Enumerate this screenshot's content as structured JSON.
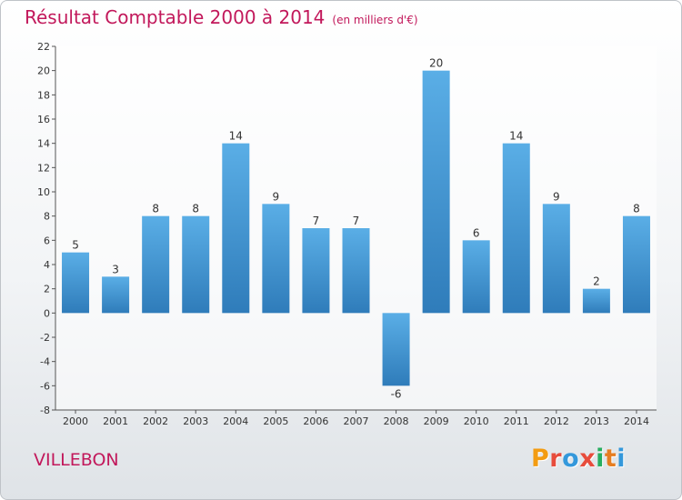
{
  "title": "Résultat Comptable 2000 à 2014",
  "unit": "(en milliers d'€)",
  "commune": "VILLEBON",
  "logo": {
    "letters": [
      "P",
      "r",
      "o",
      "x",
      "i",
      "t",
      "i"
    ],
    "colors": [
      "#f39c12",
      "#e74c3c",
      "#3498db",
      "#e74c3c",
      "#27ae60",
      "#e67e22",
      "#3498db"
    ]
  },
  "colors": {
    "bar_light": "#5aaee6",
    "bar_dark": "#2f7cba",
    "title": "#c2185b"
  },
  "chart_data": {
    "type": "bar",
    "categories": [
      "2000",
      "2001",
      "2002",
      "2003",
      "2004",
      "2005",
      "2006",
      "2007",
      "2008",
      "2009",
      "2010",
      "2011",
      "2012",
      "2013",
      "2014"
    ],
    "values": [
      5,
      3,
      8,
      8,
      14,
      9,
      7,
      7,
      -6,
      20,
      6,
      14,
      9,
      2,
      8
    ],
    "title": "Résultat Comptable 2000 à 2014",
    "ylabel": "en milliers d'€",
    "ylim": [
      -8,
      22
    ],
    "yticks": [
      -8,
      -6,
      -4,
      -2,
      0,
      2,
      4,
      6,
      8,
      10,
      12,
      14,
      16,
      18,
      20,
      22
    ],
    "grid": false
  }
}
